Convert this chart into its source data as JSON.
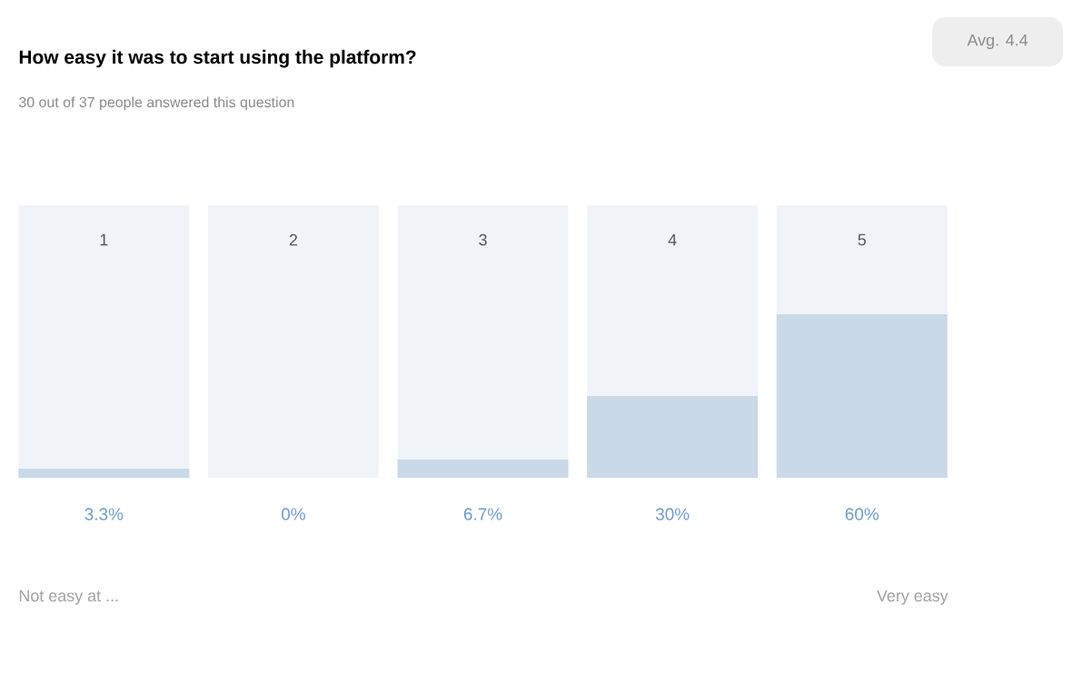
{
  "chart_data": {
    "type": "bar",
    "title": "How easy it was to start using the platform?",
    "subtitle": "30 out of 37 people answered this question",
    "categories": [
      "1",
      "2",
      "3",
      "4",
      "5"
    ],
    "stacked": true,
    "series": [
      {
        "color": "#c9d9e8",
        "values": [
          3.3,
          0,
          6.7,
          30,
          60
        ],
        "value_labels": [
          "3.3%",
          "0%",
          "6.7%",
          "30%",
          "60%"
        ]
      },
      {
        "color": "#f0f4f8",
        "values": [
          96.7,
          100,
          93.3,
          70,
          40
        ]
      }
    ],
    "ylim": [
      0,
      100
    ],
    "annotations": [
      "Avg. 4.4",
      "Not easy at ...",
      "Very easy"
    ]
  }
}
